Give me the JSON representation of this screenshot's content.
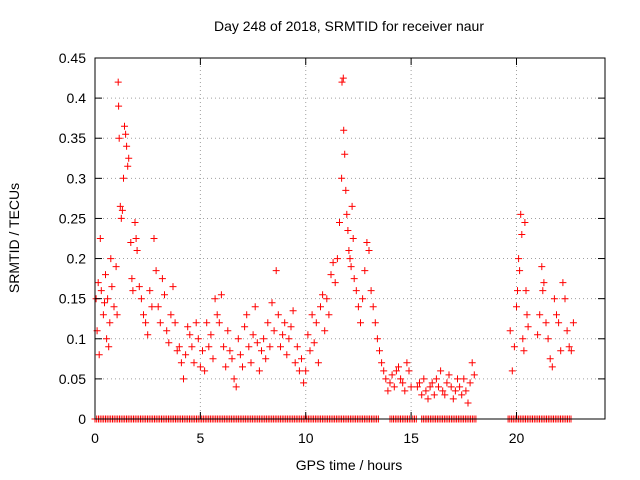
{
  "chart_data": {
    "type": "scatter",
    "title": "Day 248 of 2018, SRMTID for receiver naur",
    "xlabel": "GPS time / hours",
    "ylabel": "SRMTID / TECUs",
    "xlim": [
      0,
      24.2
    ],
    "ylim": [
      0,
      0.45
    ],
    "xticks": [
      0,
      5,
      10,
      15,
      20
    ],
    "xtick_labels": [
      "0",
      "5",
      "10",
      "15",
      "20"
    ],
    "yticks": [
      0,
      0.05,
      0.1,
      0.15,
      0.2,
      0.25,
      0.3,
      0.35,
      0.4,
      0.45
    ],
    "ytick_labels": [
      "0",
      "0.05",
      "0.1",
      "0.15",
      "0.2",
      "0.25",
      "0.3",
      "0.35",
      "0.4",
      "0.45"
    ],
    "grid": true,
    "marker": "plus",
    "marker_color": "#ff0000",
    "series": [
      {
        "name": "SRMTID",
        "color": "#ff0000",
        "points": [
          [
            0.05,
            0.15
          ],
          [
            0.1,
            0.11
          ],
          [
            0.15,
            0.17
          ],
          [
            0.2,
            0.08
          ],
          [
            0.25,
            0.225
          ],
          [
            0.3,
            0.16
          ],
          [
            0.4,
            0.13
          ],
          [
            0.45,
            0.145
          ],
          [
            0.5,
            0.18
          ],
          [
            0.55,
            0.1
          ],
          [
            0.6,
            0.15
          ],
          [
            0.65,
            0.09
          ],
          [
            0.7,
            0.12
          ],
          [
            0.75,
            0.2
          ],
          [
            0.8,
            0.165
          ],
          [
            0.9,
            0.14
          ],
          [
            1.0,
            0.19
          ],
          [
            1.05,
            0.13
          ],
          [
            1.1,
            0.42
          ],
          [
            1.12,
            0.39
          ],
          [
            1.15,
            0.35
          ],
          [
            1.2,
            0.265
          ],
          [
            1.25,
            0.25
          ],
          [
            1.3,
            0.26
          ],
          [
            1.35,
            0.3
          ],
          [
            1.4,
            0.365
          ],
          [
            1.45,
            0.355
          ],
          [
            1.5,
            0.34
          ],
          [
            1.55,
            0.315
          ],
          [
            1.6,
            0.325
          ],
          [
            1.7,
            0.22
          ],
          [
            1.75,
            0.175
          ],
          [
            1.8,
            0.16
          ],
          [
            1.9,
            0.245
          ],
          [
            1.95,
            0.225
          ],
          [
            2.0,
            0.21
          ],
          [
            2.1,
            0.165
          ],
          [
            2.2,
            0.15
          ],
          [
            2.3,
            0.13
          ],
          [
            2.4,
            0.12
          ],
          [
            2.5,
            0.105
          ],
          [
            2.6,
            0.16
          ],
          [
            2.7,
            0.14
          ],
          [
            2.8,
            0.225
          ],
          [
            2.9,
            0.185
          ],
          [
            3.0,
            0.14
          ],
          [
            3.1,
            0.12
          ],
          [
            3.2,
            0.175
          ],
          [
            3.3,
            0.155
          ],
          [
            3.4,
            0.11
          ],
          [
            3.5,
            0.095
          ],
          [
            3.6,
            0.13
          ],
          [
            3.7,
            0.165
          ],
          [
            3.8,
            0.12
          ],
          [
            3.9,
            0.085
          ],
          [
            4.0,
            0.09
          ],
          [
            4.1,
            0.07
          ],
          [
            4.2,
            0.05
          ],
          [
            4.3,
            0.08
          ],
          [
            4.4,
            0.115
          ],
          [
            4.5,
            0.105
          ],
          [
            4.6,
            0.09
          ],
          [
            4.7,
            0.07
          ],
          [
            4.8,
            0.12
          ],
          [
            4.9,
            0.1
          ],
          [
            5.0,
            0.065
          ],
          [
            5.1,
            0.085
          ],
          [
            5.2,
            0.06
          ],
          [
            5.3,
            0.12
          ],
          [
            5.4,
            0.09
          ],
          [
            5.5,
            0.105
          ],
          [
            5.6,
            0.075
          ],
          [
            5.7,
            0.15
          ],
          [
            5.8,
            0.13
          ],
          [
            5.9,
            0.12
          ],
          [
            6.0,
            0.155
          ],
          [
            6.1,
            0.09
          ],
          [
            6.2,
            0.065
          ],
          [
            6.3,
            0.11
          ],
          [
            6.4,
            0.085
          ],
          [
            6.5,
            0.075
          ],
          [
            6.6,
            0.05
          ],
          [
            6.7,
            0.04
          ],
          [
            6.8,
            0.1
          ],
          [
            6.9,
            0.08
          ],
          [
            7.0,
            0.065
          ],
          [
            7.1,
            0.115
          ],
          [
            7.2,
            0.13
          ],
          [
            7.3,
            0.09
          ],
          [
            7.4,
            0.07
          ],
          [
            7.5,
            0.105
          ],
          [
            7.6,
            0.14
          ],
          [
            7.7,
            0.095
          ],
          [
            7.8,
            0.06
          ],
          [
            7.9,
            0.085
          ],
          [
            8.0,
            0.1
          ],
          [
            8.1,
            0.075
          ],
          [
            8.2,
            0.12
          ],
          [
            8.3,
            0.09
          ],
          [
            8.4,
            0.145
          ],
          [
            8.5,
            0.11
          ],
          [
            8.6,
            0.185
          ],
          [
            8.7,
            0.13
          ],
          [
            8.8,
            0.09
          ],
          [
            8.9,
            0.105
          ],
          [
            9.0,
            0.12
          ],
          [
            9.1,
            0.08
          ],
          [
            9.2,
            0.1
          ],
          [
            9.3,
            0.115
          ],
          [
            9.4,
            0.135
          ],
          [
            9.5,
            0.07
          ],
          [
            9.6,
            0.09
          ],
          [
            9.7,
            0.06
          ],
          [
            9.8,
            0.075
          ],
          [
            9.9,
            0.045
          ],
          [
            10.0,
            0.06
          ],
          [
            10.1,
            0.105
          ],
          [
            10.2,
            0.085
          ],
          [
            10.3,
            0.13
          ],
          [
            10.4,
            0.095
          ],
          [
            10.5,
            0.12
          ],
          [
            10.6,
            0.07
          ],
          [
            10.7,
            0.14
          ],
          [
            10.8,
            0.155
          ],
          [
            10.9,
            0.11
          ],
          [
            11.0,
            0.15
          ],
          [
            11.1,
            0.13
          ],
          [
            11.2,
            0.18
          ],
          [
            11.3,
            0.195
          ],
          [
            11.4,
            0.17
          ],
          [
            11.5,
            0.2
          ],
          [
            11.6,
            0.245
          ],
          [
            11.7,
            0.3
          ],
          [
            11.72,
            0.42
          ],
          [
            11.78,
            0.425
          ],
          [
            11.8,
            0.36
          ],
          [
            11.85,
            0.33
          ],
          [
            11.9,
            0.285
          ],
          [
            11.95,
            0.255
          ],
          [
            12.0,
            0.235
          ],
          [
            12.05,
            0.21
          ],
          [
            12.1,
            0.2
          ],
          [
            12.15,
            0.19
          ],
          [
            12.2,
            0.265
          ],
          [
            12.25,
            0.225
          ],
          [
            12.3,
            0.175
          ],
          [
            12.4,
            0.16
          ],
          [
            12.5,
            0.14
          ],
          [
            12.6,
            0.12
          ],
          [
            12.7,
            0.15
          ],
          [
            12.8,
            0.185
          ],
          [
            12.9,
            0.22
          ],
          [
            13.0,
            0.21
          ],
          [
            13.1,
            0.16
          ],
          [
            13.2,
            0.14
          ],
          [
            13.3,
            0.12
          ],
          [
            13.4,
            0.1
          ],
          [
            13.5,
            0.085
          ],
          [
            13.6,
            0.07
          ],
          [
            13.7,
            0.06
          ],
          [
            13.8,
            0.05
          ],
          [
            13.9,
            0.035
          ],
          [
            14.0,
            0.045
          ],
          [
            14.1,
            0.055
          ],
          [
            14.2,
            0.04
          ],
          [
            14.3,
            0.06
          ],
          [
            14.4,
            0.065
          ],
          [
            14.5,
            0.05
          ],
          [
            14.6,
            0.045
          ],
          [
            14.7,
            0.035
          ],
          [
            14.8,
            0.07
          ],
          [
            14.9,
            0.06
          ],
          [
            15.0,
            0.04
          ],
          [
            15.3,
            0.04
          ],
          [
            15.4,
            0.045
          ],
          [
            15.5,
            0.03
          ],
          [
            15.6,
            0.05
          ],
          [
            15.7,
            0.035
          ],
          [
            15.8,
            0.025
          ],
          [
            15.9,
            0.04
          ],
          [
            16.0,
            0.045
          ],
          [
            16.1,
            0.03
          ],
          [
            16.2,
            0.05
          ],
          [
            16.3,
            0.04
          ],
          [
            16.4,
            0.06
          ],
          [
            16.5,
            0.035
          ],
          [
            16.6,
            0.03
          ],
          [
            16.7,
            0.045
          ],
          [
            16.8,
            0.055
          ],
          [
            16.9,
            0.04
          ],
          [
            17.0,
            0.025
          ],
          [
            17.1,
            0.035
          ],
          [
            17.2,
            0.05
          ],
          [
            17.3,
            0.04
          ],
          [
            17.4,
            0.03
          ],
          [
            17.5,
            0.05
          ],
          [
            17.6,
            0.035
          ],
          [
            17.7,
            0.02
          ],
          [
            17.8,
            0.045
          ],
          [
            17.9,
            0.07
          ],
          [
            18.0,
            0.055
          ],
          [
            19.7,
            0.11
          ],
          [
            19.8,
            0.06
          ],
          [
            19.9,
            0.09
          ],
          [
            20.0,
            0.14
          ],
          [
            20.05,
            0.16
          ],
          [
            20.1,
            0.2
          ],
          [
            20.15,
            0.185
          ],
          [
            20.2,
            0.255
          ],
          [
            20.25,
            0.23
          ],
          [
            20.3,
            0.1
          ],
          [
            20.35,
            0.085
          ],
          [
            20.4,
            0.245
          ],
          [
            20.45,
            0.16
          ],
          [
            20.5,
            0.13
          ],
          [
            20.55,
            0.115
          ],
          [
            21.0,
            0.105
          ],
          [
            21.1,
            0.13
          ],
          [
            21.2,
            0.19
          ],
          [
            21.25,
            0.16
          ],
          [
            21.3,
            0.17
          ],
          [
            21.4,
            0.12
          ],
          [
            21.5,
            0.1
          ],
          [
            21.6,
            0.075
          ],
          [
            21.7,
            0.065
          ],
          [
            21.8,
            0.15
          ],
          [
            21.9,
            0.13
          ],
          [
            22.0,
            0.12
          ],
          [
            22.1,
            0.085
          ],
          [
            22.2,
            0.17
          ],
          [
            22.3,
            0.15
          ],
          [
            22.4,
            0.11
          ],
          [
            22.5,
            0.09
          ],
          [
            22.6,
            0.085
          ],
          [
            22.7,
            0.12
          ]
        ],
        "zero_value_runs": [
          [
            0.0,
            13.5
          ],
          [
            14.0,
            15.3
          ],
          [
            15.5,
            18.1
          ],
          [
            19.6,
            22.6
          ]
        ],
        "zero_value_spacing_hours": 0.083
      }
    ]
  }
}
